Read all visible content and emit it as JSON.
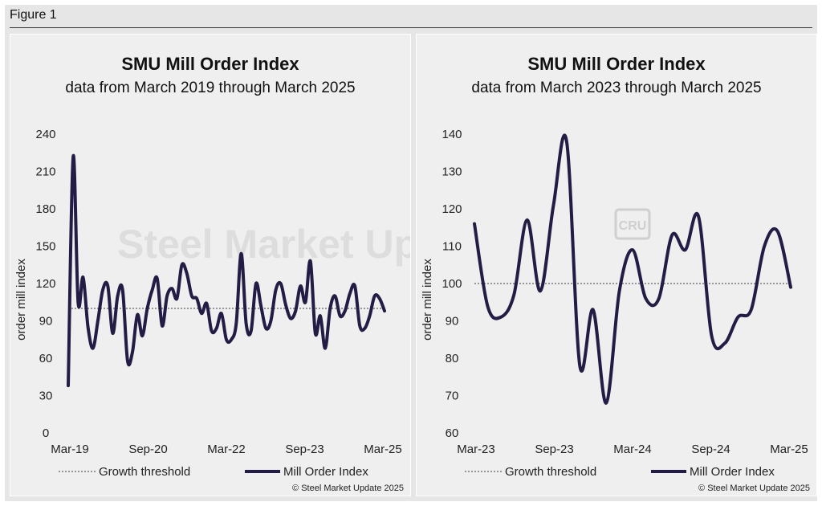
{
  "figure_label": "Figure 1",
  "watermark_left": "Steel Market Update",
  "watermark_right": "CRU",
  "colors": {
    "line": "#231c45",
    "threshold": "#7a7a7a",
    "panel_bg": "#efefef",
    "frame_bg": "#e6e6e6"
  },
  "chart_data": [
    {
      "type": "line",
      "title": "SMU Mill Order Index",
      "subtitle": "data from March 2019 through March 2025",
      "ylabel": "order mill index",
      "xlabel": "",
      "ylim": [
        0,
        240
      ],
      "yticks": [
        0,
        30,
        60,
        90,
        120,
        150,
        180,
        210,
        240
      ],
      "xtick_labels": [
        "Mar-19",
        "Sep-20",
        "Mar-22",
        "Sep-23",
        "Mar-25"
      ],
      "threshold": 100,
      "legend": [
        "Growth threshold",
        "Mill Order Index"
      ],
      "copyright": "© Steel Market Update 2025",
      "series": [
        {
          "name": "Mill Order Index",
          "values": [
            38,
            222,
            105,
            125,
            85,
            68,
            90,
            115,
            118,
            80,
            110,
            115,
            58,
            65,
            95,
            78,
            100,
            115,
            124,
            86,
            110,
            116,
            108,
            135,
            128,
            110,
            108,
            96,
            104,
            82,
            84,
            96,
            75,
            75,
            88,
            144,
            88,
            82,
            120,
            102,
            84,
            90,
            115,
            120,
            103,
            92,
            98,
            118,
            105,
            138,
            80,
            94,
            68,
            100,
            110,
            94,
            98,
            112,
            118,
            86,
            84,
            94,
            110,
            108,
            98
          ]
        }
      ]
    },
    {
      "type": "line",
      "title": "SMU Mill Order Index",
      "subtitle": "data from March 2023 through March 2025",
      "ylabel": "order mill index",
      "xlabel": "",
      "ylim": [
        60,
        140
      ],
      "yticks": [
        60,
        70,
        80,
        90,
        100,
        110,
        120,
        130,
        140
      ],
      "xtick_labels": [
        "Mar-23",
        "Sep-23",
        "Mar-24",
        "Sep-24",
        "Mar-25"
      ],
      "threshold": 100,
      "legend": [
        "Growth threshold",
        "Mill Order Index"
      ],
      "copyright": "© Steel Market Update 2025",
      "series": [
        {
          "name": "Mill Order Index",
          "values": [
            116,
            94,
            91,
            97,
            117,
            98,
            121,
            138,
            78,
            93,
            68,
            98,
            109,
            96,
            96,
            113,
            109,
            118,
            86,
            84,
            91,
            93,
            110,
            114,
            99
          ]
        }
      ]
    }
  ]
}
